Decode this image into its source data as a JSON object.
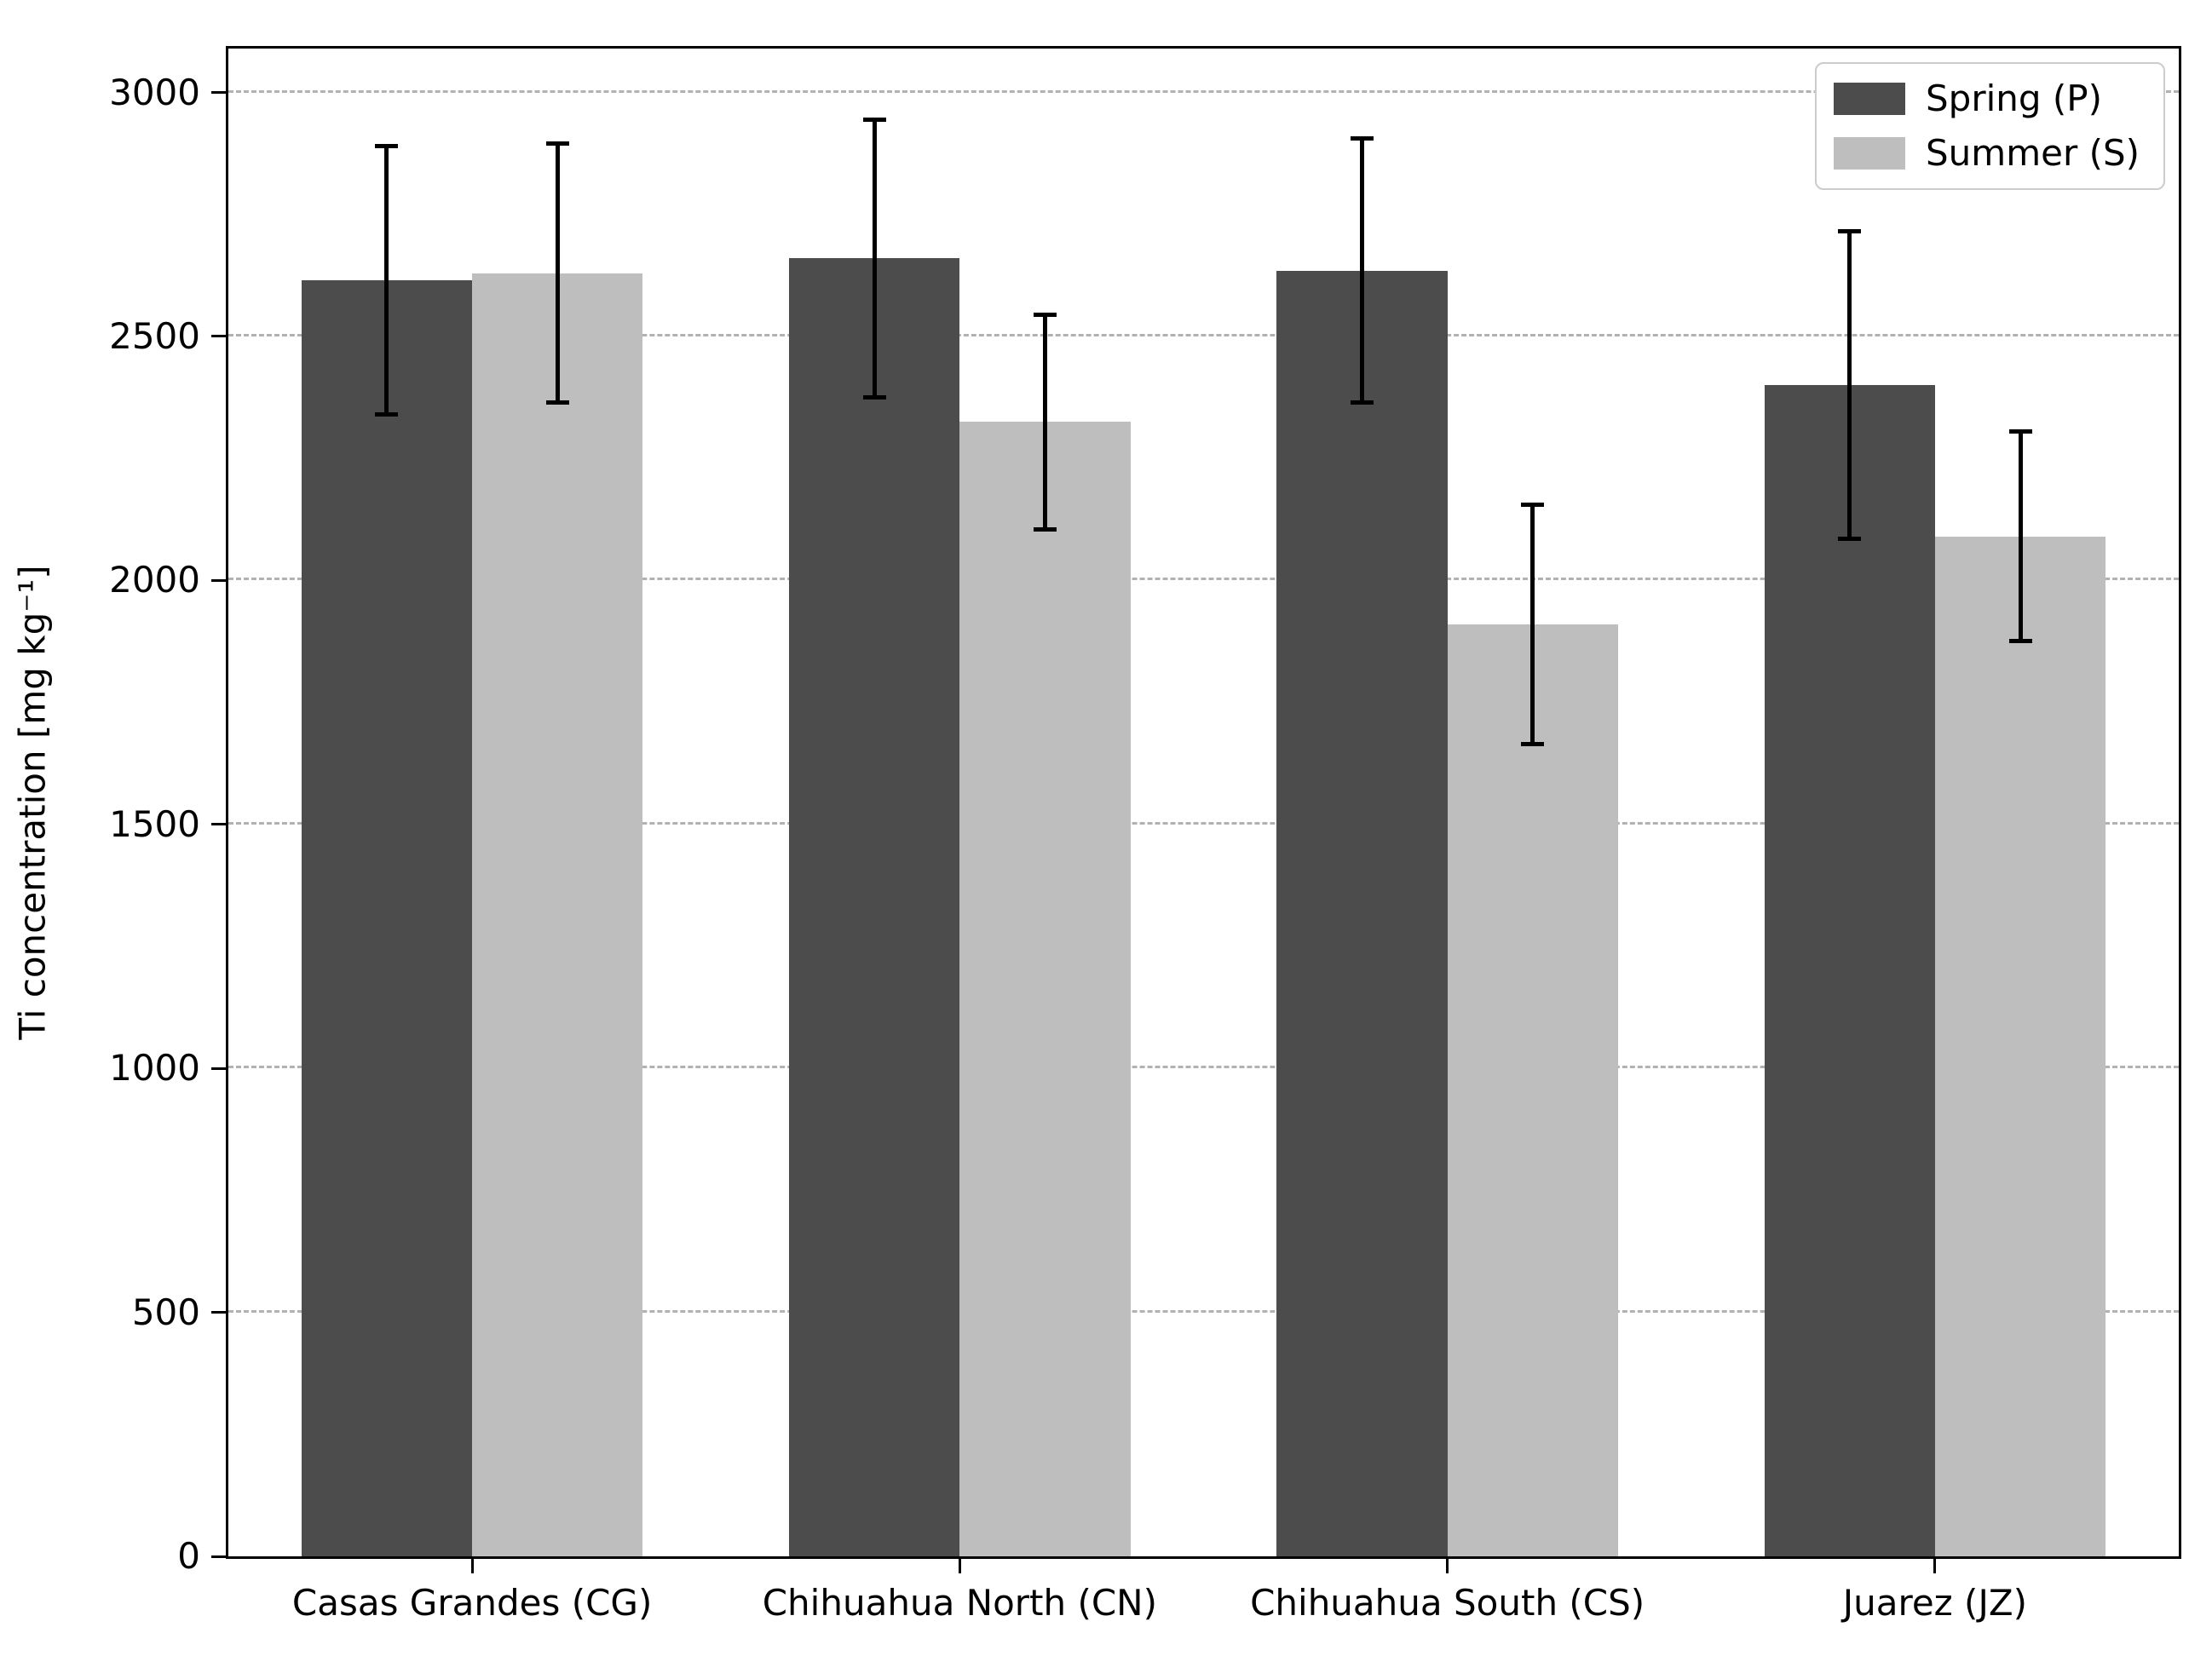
{
  "chart_data": {
    "type": "bar",
    "title": "",
    "xlabel": "",
    "ylabel": "Ti concentration [mg kg⁻¹]",
    "categories": [
      "Casas Grandes (CG)",
      "Chihuahua North (CN)",
      "Chihuahua South (CS)",
      "Juarez (JZ)"
    ],
    "category_codes": [
      "CG",
      "CN",
      "CS",
      "JZ"
    ],
    "series": [
      {
        "name": "Spring (P)",
        "color": "#4c4c4c",
        "values": [
          2615,
          2660,
          2635,
          2400
        ],
        "errors": [
          275,
          285,
          270,
          315
        ]
      },
      {
        "name": "Summer (S)",
        "color": "#bebebe",
        "values": [
          2630,
          2325,
          1910,
          2090
        ],
        "errors": [
          265,
          220,
          245,
          215
        ]
      }
    ],
    "yticks": [
      0,
      500,
      1000,
      1500,
      2000,
      2500,
      3000
    ],
    "ylim": [
      0,
      3090
    ],
    "grid": "horizontal-dashed",
    "gridline_color": "#b2b2b2",
    "error_bar_color": "#000000",
    "legend_position": "upper-right",
    "bar_width_fraction": 0.35
  }
}
